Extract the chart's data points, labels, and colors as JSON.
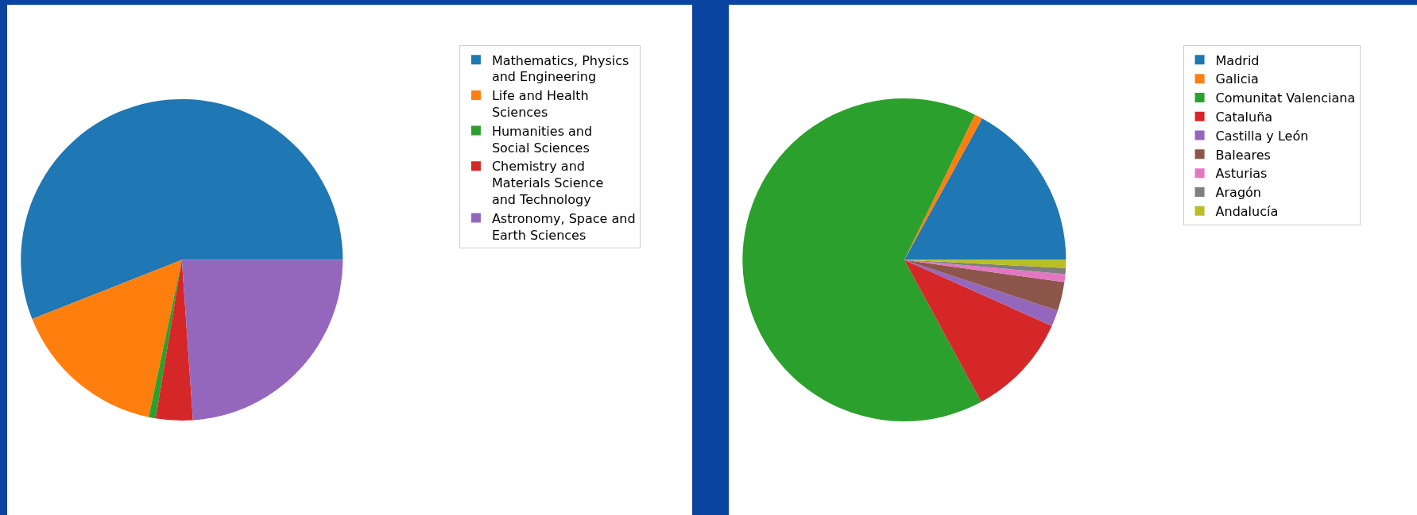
{
  "chart_data": [
    {
      "type": "pie",
      "categories": [
        "Mathematics, Physics\nand Engineering",
        "Life and Health\nSciences",
        "Humanities and\nSocial Sciences",
        "Chemistry and\nMaterials Science\nand Technology",
        "Astronomy, Space and\nEarth Sciences"
      ],
      "values": [
        56,
        15.7,
        0.7,
        3.7,
        23.9
      ],
      "colors": [
        "#1f77b4",
        "#ff7f0e",
        "#2ca02c",
        "#d62728",
        "#9467bd"
      ],
      "legend": "top right"
    },
    {
      "type": "pie",
      "categories": [
        "Madrid",
        "Galicia",
        "Comunitat Valenciana",
        "Cataluña",
        "Castilla y León",
        "Baleares",
        "Asturias",
        "Aragón",
        "Andalucía"
      ],
      "values": [
        17,
        0.8,
        65.1,
        10.4,
        1.6,
        2.9,
        0.8,
        0.6,
        0.8
      ],
      "colors": [
        "#1f77b4",
        "#ff7f0e",
        "#2ca02c",
        "#d62728",
        "#9467bd",
        "#8c564b",
        "#e377c2",
        "#7f7f7f",
        "#bcbd22"
      ],
      "legend": "top right"
    }
  ]
}
